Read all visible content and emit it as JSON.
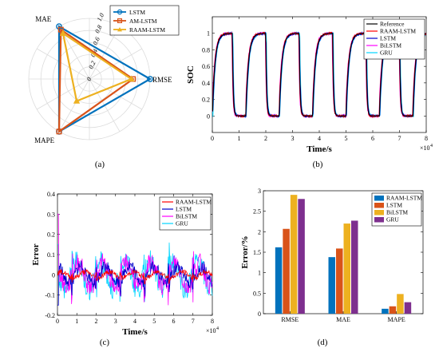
{
  "colors": {
    "blue": "#0072BD",
    "orange": "#D95319",
    "yellow": "#EDB120",
    "purple": "#7E2F8E",
    "black": "#000000",
    "red": "#FF0000",
    "navy": "#0000CC",
    "magenta": "#FF00FF",
    "cyan": "#00D5FF"
  },
  "chart_data": [
    {
      "panel": "a",
      "caption": "(a)",
      "type": "radar",
      "axes": [
        "RMSE",
        "MAE",
        "MAPE"
      ],
      "radial_ticks": [
        "0",
        "0.2",
        "0.4",
        "0.6",
        "0.8",
        "1.0"
      ],
      "rmax": 1.0,
      "series": [
        {
          "name": "LSTM",
          "color": "#0072BD",
          "marker": "circle",
          "values": [
            1.0,
            1.0,
            1.0
          ]
        },
        {
          "name": "AM-LSTM",
          "color": "#D95319",
          "marker": "square",
          "values": [
            0.72,
            0.94,
            1.0
          ]
        },
        {
          "name": "RAAM-LSTM",
          "color": "#EDB120",
          "marker": "triangle",
          "values": [
            0.69,
            0.87,
            0.42
          ]
        }
      ],
      "legend_position": "top-right"
    },
    {
      "panel": "b",
      "caption": "(b)",
      "type": "line",
      "xlabel": "Time/s",
      "ylabel": "SOC",
      "xlim": [
        0,
        80000
      ],
      "ylim": [
        -0.2,
        1.2
      ],
      "xticks": [
        0,
        10000,
        20000,
        30000,
        40000,
        50000,
        60000,
        70000,
        80000
      ],
      "xtick_labels": [
        "0",
        "1",
        "2",
        "3",
        "4",
        "5",
        "6",
        "7",
        "8"
      ],
      "yticks": [
        0,
        0.2,
        0.4,
        0.6,
        0.8,
        1
      ],
      "ytick_labels": [
        "0",
        "0.2",
        "0.4",
        "0.6",
        "0.8",
        "1"
      ],
      "x_exponent": "×10^4",
      "cycle": {
        "period": 12500,
        "charge_end": 7500,
        "tau_rise": 1000,
        "tau_fall": 300,
        "cycles": 7
      },
      "series": [
        {
          "name": "Reference",
          "color": "#000000"
        },
        {
          "name": "RAAM-LSTM",
          "color": "#FF0000"
        },
        {
          "name": "LSTM",
          "color": "#0000CC"
        },
        {
          "name": "BiLSTM",
          "color": "#FF00FF"
        },
        {
          "name": "GRU",
          "color": "#00D5FF"
        }
      ],
      "legend_position": "top-right"
    },
    {
      "panel": "c",
      "caption": "(c)",
      "type": "line",
      "xlabel": "Time/s",
      "ylabel": "Error",
      "xlim": [
        0,
        80000
      ],
      "ylim": [
        -0.2,
        0.4
      ],
      "xticks": [
        0,
        10000,
        20000,
        30000,
        40000,
        50000,
        60000,
        70000,
        80000
      ],
      "xtick_labels": [
        "0",
        "1",
        "2",
        "3",
        "4",
        "5",
        "6",
        "7",
        "8"
      ],
      "yticks": [
        -0.2,
        -0.1,
        0,
        0.1,
        0.2,
        0.3,
        0.4
      ],
      "ytick_labels": [
        "-0.2",
        "-0.1",
        "0",
        "0.1",
        "0.2",
        "0.3",
        "0.4"
      ],
      "x_exponent": "×10^4",
      "series": [
        {
          "name": "RAAM-LSTM",
          "color": "#FF0000",
          "amp": 0.015,
          "spike": 0.0
        },
        {
          "name": "LSTM",
          "color": "#0000CC",
          "amp": 0.04,
          "spike": -0.15
        },
        {
          "name": "BiLSTM",
          "color": "#FF00FF",
          "amp": 0.06,
          "spike": 0.3
        },
        {
          "name": "GRU",
          "color": "#00D5FF",
          "amp": 0.07,
          "spike": 0.15
        }
      ],
      "legend_position": "top-right"
    },
    {
      "panel": "d",
      "caption": "(d)",
      "type": "bar",
      "ylabel": "Error/%",
      "categories": [
        "RMSE",
        "MAE",
        "MAPE"
      ],
      "ylim": [
        0,
        3
      ],
      "yticks": [
        0,
        0.5,
        1,
        1.5,
        2,
        2.5,
        3
      ],
      "ytick_labels": [
        "0",
        "0.5",
        "1",
        "1.5",
        "2",
        "2.5",
        "3"
      ],
      "series": [
        {
          "name": "RAAM-LSTM",
          "color": "#0072BD",
          "values": [
            1.62,
            1.38,
            0.12
          ]
        },
        {
          "name": "LSTM",
          "color": "#D95319",
          "values": [
            2.07,
            1.59,
            0.18
          ]
        },
        {
          "name": "BiLSTM",
          "color": "#EDB120",
          "values": [
            2.9,
            2.2,
            0.48
          ]
        },
        {
          "name": "GRU",
          "color": "#7E2F8E",
          "values": [
            2.8,
            2.27,
            0.28
          ]
        }
      ],
      "legend_position": "top-right"
    }
  ]
}
